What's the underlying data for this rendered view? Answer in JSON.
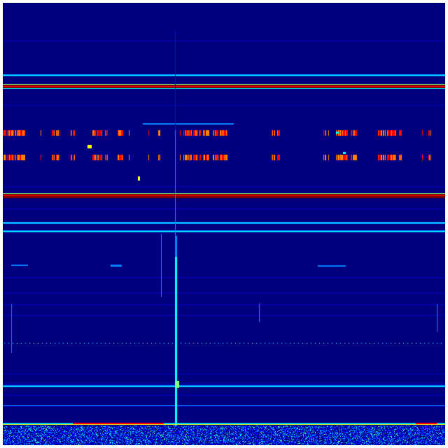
{
  "waterfall": {
    "colormap": [
      "#00007f",
      "#0000ff",
      "#0080ff",
      "#00ffff",
      "#80ff80",
      "#ffff00",
      "#ff8000",
      "#ff0000",
      "#7f0000"
    ],
    "background": "#00007f",
    "border": "#ffffff"
  }
}
